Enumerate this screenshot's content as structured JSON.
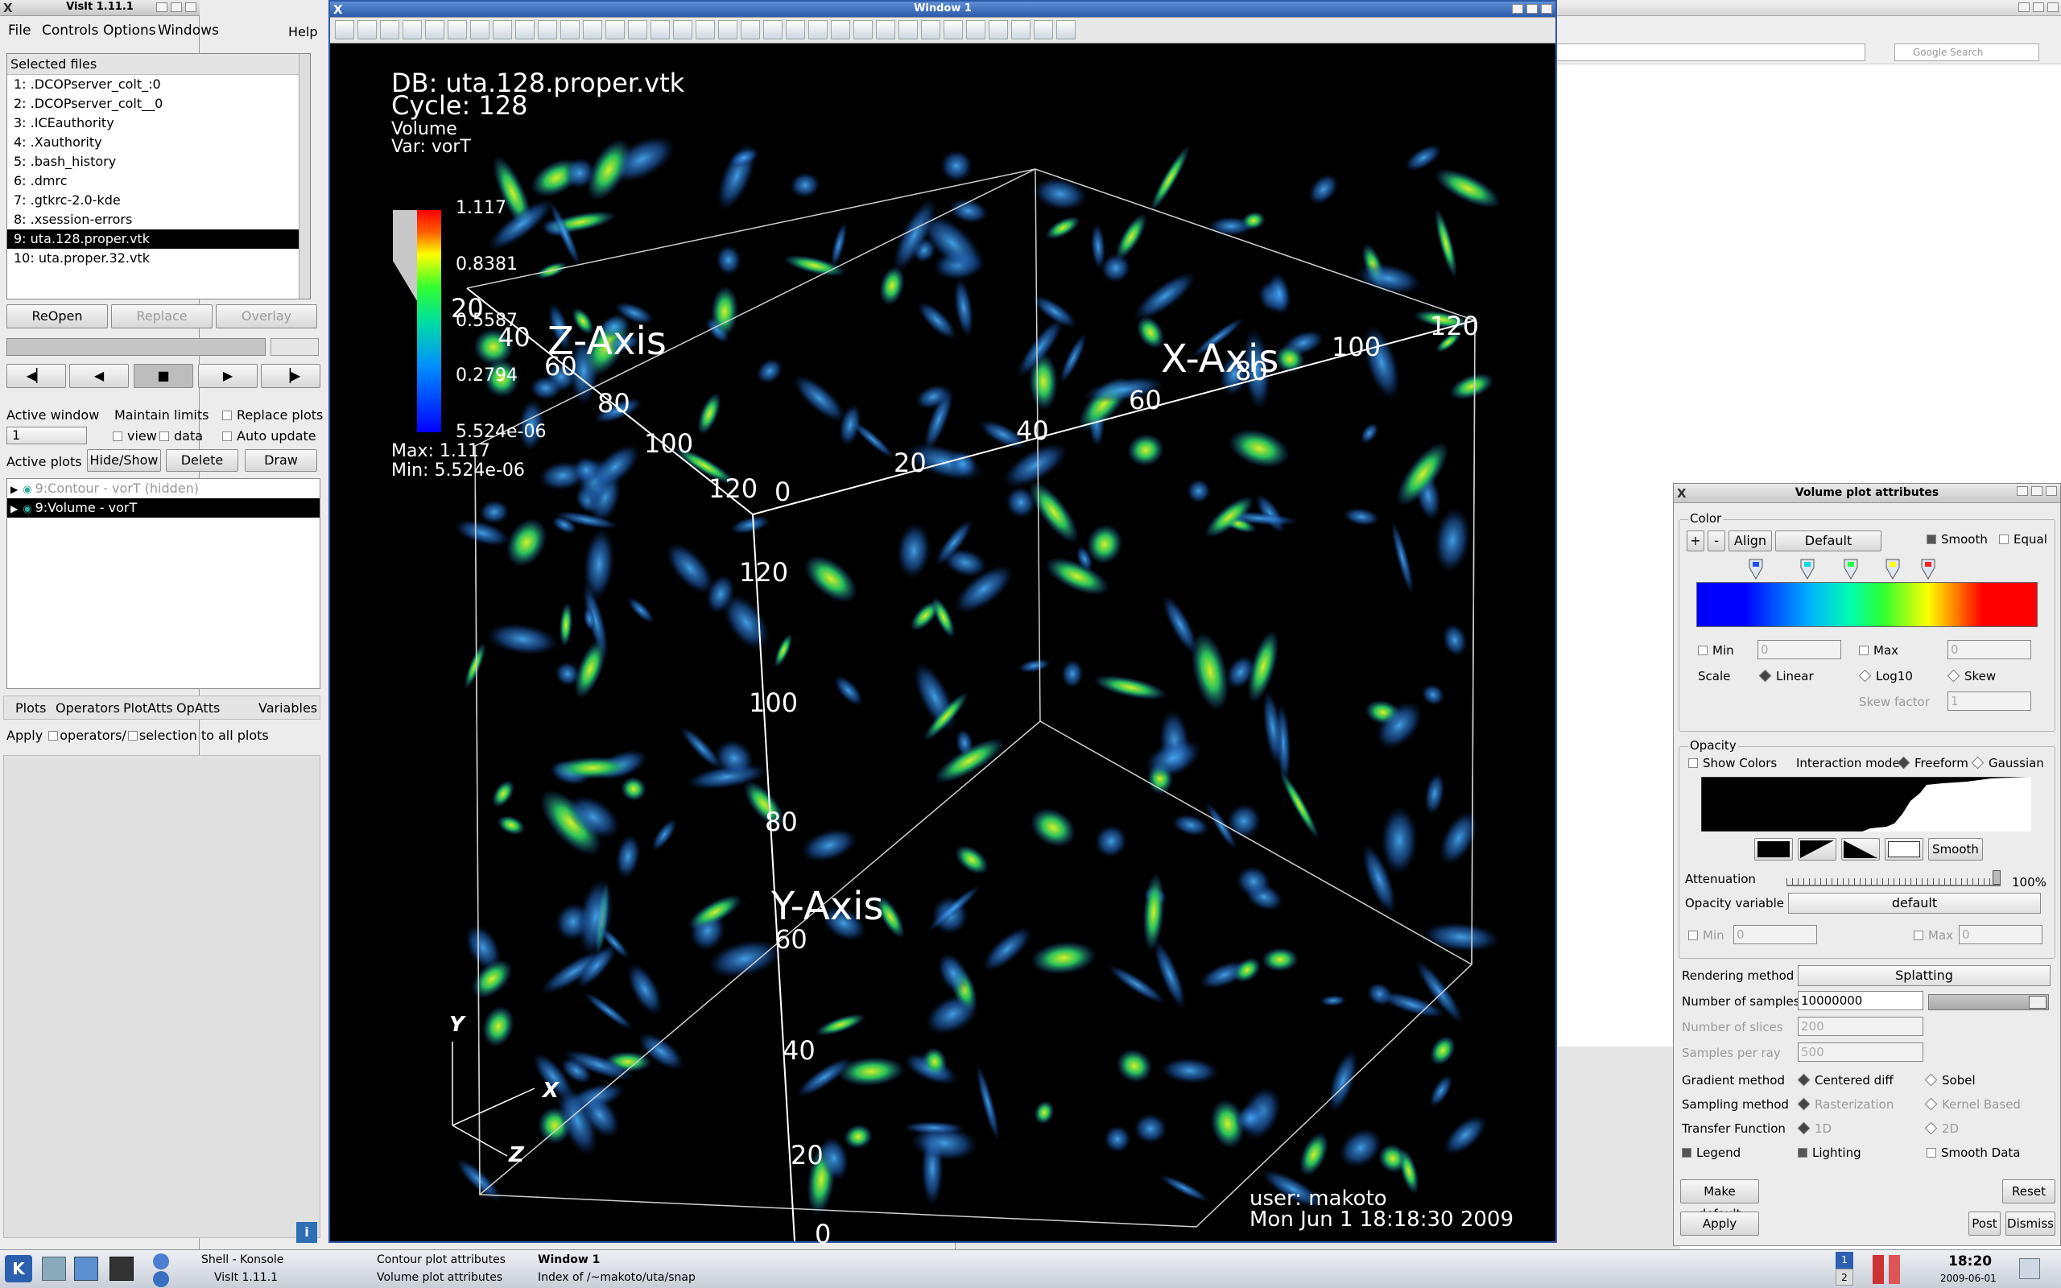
{
  "visit": {
    "title": "VisIt 1.11.1",
    "menu": [
      "File",
      "Controls",
      "Options",
      "Windows"
    ],
    "help": "Help",
    "selected_files_label": "Selected files",
    "files": [
      "1: .DCOPserver_colt_:0",
      "2: .DCOPserver_colt__0",
      "3: .ICEauthority",
      "4: .Xauthority",
      "5: .bash_history",
      "6: .dmrc",
      "7: .gtkrc-2.0-kde",
      "8: .xsession-errors",
      "9: uta.128.proper.vtk",
      "10: uta.proper.32.vtk"
    ],
    "selected_file_index": 8,
    "reopen": "ReOpen",
    "replace": "Replace",
    "overlay": "Overlay",
    "active_window_label": "Active window",
    "active_window_value": "1",
    "maintain_limits": "Maintain limits",
    "view": "view",
    "data": "data",
    "replace_plots": "Replace plots",
    "auto_update": "Auto update",
    "active_plots": "Active plots",
    "hide_show": "Hide/Show",
    "delete": "Delete",
    "draw": "Draw",
    "plots": [
      "9:Contour - vorT (hidden)",
      "9:Volume - vorT"
    ],
    "selected_plot_index": 1,
    "bottom_menu": [
      "Plots",
      "Operators",
      "PlotAtts",
      "OpAtts"
    ],
    "variables": "Variables",
    "apply_label": "Apply",
    "operators_label": "operators/",
    "selection_label": "selection to all plots"
  },
  "window1": {
    "title": "Window 1",
    "db": "DB: uta.128.proper.vtk",
    "cycle": "Cycle: 128",
    "plot_name": "Volume",
    "var": "Var: vorT",
    "legend_ticks": [
      "1.117",
      "0.8381",
      "0.5587",
      "0.2794",
      "5.524e-06"
    ],
    "max": "Max:  1.117",
    "min": "Min:  5.524e-06",
    "z_axis": "Z-Axis",
    "x_axis": "X-Axis",
    "y_axis": "Y-Axis",
    "z_ticks": [
      "20",
      "40",
      "60",
      "80",
      "100",
      "120"
    ],
    "x_ticks": [
      "0",
      "20",
      "40",
      "60",
      "80",
      "100",
      "120"
    ],
    "y_ticks": [
      "120",
      "100",
      "80",
      "60",
      "40",
      "20",
      "0"
    ],
    "triad_y": "Y",
    "triad_x": "X",
    "triad_z": "Z",
    "user": "user: makoto",
    "date": "Mon Jun  1 18:18:30 2009"
  },
  "browser": {
    "search_placeholder": "Google Search"
  },
  "vpa": {
    "title": "Volume plot attributes",
    "color_group": "Color",
    "plus": "+",
    "minus": "-",
    "align": "Align",
    "default_btn": "Default",
    "smooth": "Smooth",
    "equal": "Equal",
    "min": "Min",
    "min_value": "0",
    "max": "Max",
    "max_value": "0",
    "scale": "Scale",
    "linear": "Linear",
    "log10": "Log10",
    "skew": "Skew",
    "skew_factor": "Skew factor",
    "skew_factor_value": "1",
    "opacity_group": "Opacity",
    "show_colors": "Show Colors",
    "interaction_mode": "Interaction mode",
    "freeform": "Freeform",
    "gaussian": "Gaussian",
    "smooth_btn": "Smooth",
    "attenuation": "Attenuation",
    "attenuation_value": "100%",
    "opacity_variable": "Opacity variable",
    "opacity_variable_value": "default",
    "op_min": "Min",
    "op_min_value": "0",
    "op_max": "Max",
    "op_max_value": "0",
    "rendering_method": "Rendering method",
    "rendering_method_value": "Splatting",
    "number_of_samples": "Number of samples",
    "number_of_samples_value": "10000000",
    "number_of_slices": "Number of slices",
    "number_of_slices_value": "200",
    "samples_per_ray": "Samples per ray",
    "samples_per_ray_value": "500",
    "gradient_method": "Gradient method",
    "centered_diff": "Centered diff",
    "sobel": "Sobel",
    "sampling_method": "Sampling method",
    "rasterization": "Rasterization",
    "kernel_based": "Kernel Based",
    "transfer_function": "Transfer Function",
    "tf_1d": "1D",
    "tf_2d": "2D",
    "legend": "Legend",
    "lighting": "Lighting",
    "smooth_data": "Smooth Data",
    "make_default": "Make default",
    "reset": "Reset",
    "apply": "Apply",
    "post": "Post",
    "dismiss": "Dismiss"
  },
  "taskbar": {
    "items_row1": [
      "Shell - Konsole",
      "Contour plot attributes",
      "Window 1"
    ],
    "items_row2": [
      "VisIt 1.11.1",
      "Volume plot attributes",
      "Index of /~makoto/uta/snap"
    ],
    "desk_top": "1",
    "desk_bottom": "2",
    "time": "18:20",
    "date": "2009-06-01"
  },
  "colors": {
    "accent": "#000000",
    "vis_bg": "#000000"
  }
}
